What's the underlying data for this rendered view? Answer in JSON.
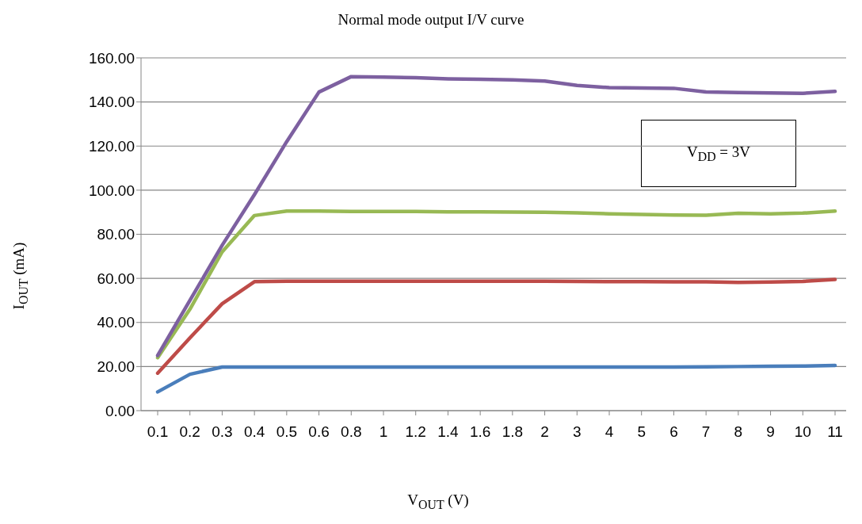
{
  "chart_data": {
    "type": "line",
    "title": "Normal mode output I/V curve",
    "xlabel": "V$_{OUT}$ (V)",
    "ylabel": "I$_{OUT}$ (mA)",
    "categories": [
      "0.1",
      "0.2",
      "0.3",
      "0.4",
      "0.5",
      "0.6",
      "0.8",
      "1",
      "1.2",
      "1.4",
      "1.6",
      "1.8",
      "2",
      "3",
      "4",
      "5",
      "6",
      "7",
      "8",
      "9",
      "10",
      "11"
    ],
    "series": [
      {
        "color": "#4a7ebb",
        "values": [
          8.5,
          16.5,
          19.8,
          19.8,
          19.8,
          19.8,
          19.8,
          19.8,
          19.8,
          19.8,
          19.8,
          19.8,
          19.8,
          19.8,
          19.8,
          19.8,
          19.8,
          19.9,
          20,
          20.1,
          20.2,
          20.5
        ]
      },
      {
        "color": "#be4b48",
        "values": [
          17,
          33,
          48.5,
          58.5,
          58.7,
          58.7,
          58.7,
          58.7,
          58.7,
          58.7,
          58.7,
          58.7,
          58.7,
          58.6,
          58.5,
          58.5,
          58.4,
          58.4,
          58.2,
          58.3,
          58.6,
          59.5
        ]
      },
      {
        "color": "#98b954",
        "values": [
          24,
          46,
          72,
          88.5,
          90.5,
          90.5,
          90.3,
          90.3,
          90.3,
          90.2,
          90.2,
          90.1,
          90,
          89.7,
          89.3,
          89,
          88.7,
          88.6,
          89.5,
          89.3,
          89.6,
          90.5
        ]
      },
      {
        "color": "#7d60a0",
        "values": [
          25,
          50,
          75,
          98,
          122,
          144.5,
          151.5,
          151.3,
          151,
          150.5,
          150.3,
          150,
          149.5,
          147.5,
          146.5,
          146.3,
          146.2,
          144.5,
          144.3,
          144.1,
          143.9,
          144.8
        ]
      }
    ],
    "ylim": [
      0,
      160
    ],
    "yticks": [
      {
        "value": 0,
        "label": "0.00"
      },
      {
        "value": 20,
        "label": "20.00"
      },
      {
        "value": 40,
        "label": "40.00"
      },
      {
        "value": 60,
        "label": "60.00"
      },
      {
        "value": 80,
        "label": "80.00"
      },
      {
        "value": 100,
        "label": "100.00"
      },
      {
        "value": 120,
        "label": "120.00"
      },
      {
        "value": 140,
        "label": "140.00"
      },
      {
        "value": 160,
        "label": "160.00"
      }
    ],
    "grid": "y",
    "annotations": [
      "V$_{DD}$ = 3V"
    ]
  }
}
